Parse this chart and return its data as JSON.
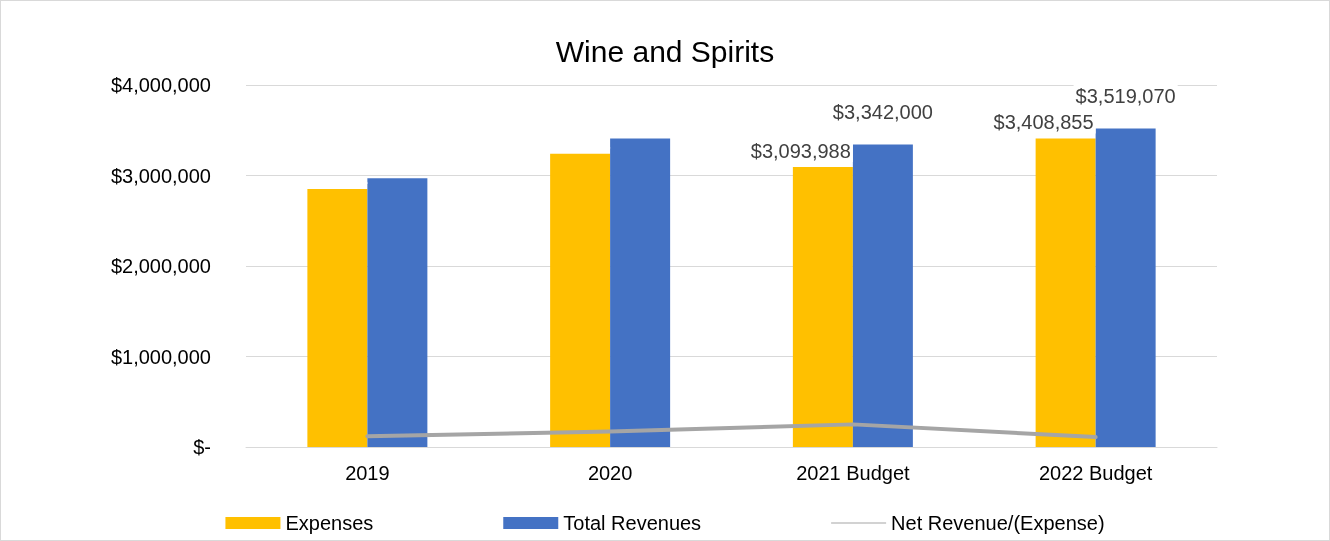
{
  "chart_data": {
    "type": "bar",
    "title": "Wine and Spirits",
    "categories": [
      "2019",
      "2020",
      "2021 Budget",
      "2022 Budget"
    ],
    "series": [
      {
        "name": "Expenses",
        "color": "#ffc000",
        "values": [
          2850000,
          3240000,
          3093988,
          3408855
        ],
        "value_labels": [
          null,
          null,
          "$3,093,988",
          "$3,408,855"
        ]
      },
      {
        "name": "Total Revenues",
        "color": "#4472c4",
        "values": [
          2970000,
          3410000,
          3342000,
          3519070
        ],
        "value_labels": [
          null,
          null,
          "$3,342,000",
          "$3,519,070"
        ]
      },
      {
        "name": "Net Revenue/(Expense)",
        "type": "line",
        "color": "#a5a5a5",
        "values": [
          120000,
          170000,
          250000,
          110000
        ],
        "marker": "none"
      }
    ],
    "ylim": [
      0,
      4000000
    ],
    "yticks": [
      {
        "value": 0,
        "label": "$-"
      },
      {
        "value": 1000000,
        "label": "$1,000,000"
      },
      {
        "value": 2000000,
        "label": "$2,000,000"
      },
      {
        "value": 3000000,
        "label": "$3,000,000"
      },
      {
        "value": 4000000,
        "label": "$4,000,000"
      }
    ],
    "grid": "y",
    "legend": "bottom"
  }
}
